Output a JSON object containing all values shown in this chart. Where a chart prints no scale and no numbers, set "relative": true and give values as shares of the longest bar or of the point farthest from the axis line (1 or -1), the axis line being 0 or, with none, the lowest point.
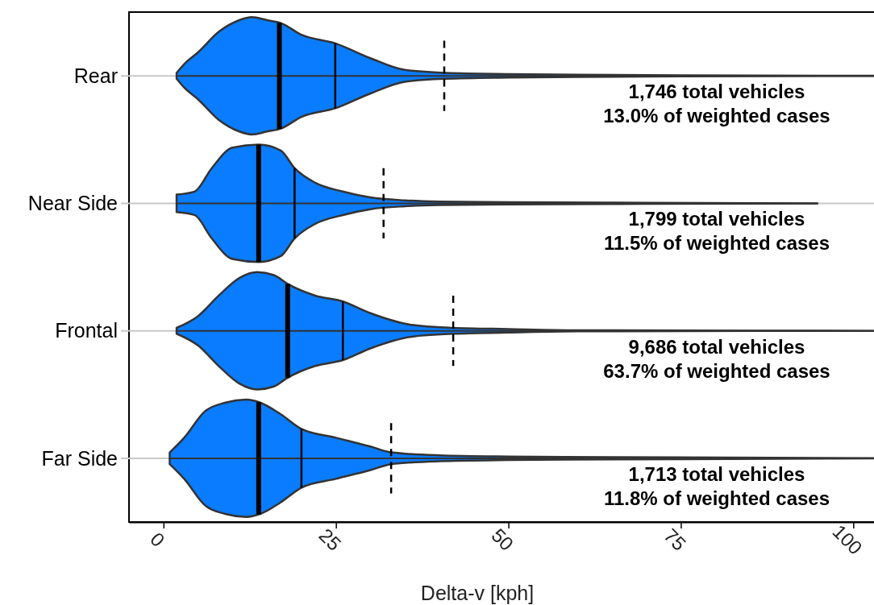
{
  "chart_data": [
    {
      "type": "area",
      "relative": true,
      "ylabel": "Rear",
      "xlim": [
        -5,
        103
      ],
      "tick_labels": false,
      "series": [
        {
          "color": "#0a7cff",
          "x": [
            1.9,
            3,
            5,
            8,
            11,
            12.8,
            15,
            17,
            20,
            25,
            30,
            35,
            41,
            50,
            60,
            75,
            103
          ],
          "values": [
            0.05,
            0.2,
            0.4,
            0.75,
            0.95,
            1,
            0.95,
            0.9,
            0.7,
            0.55,
            0.3,
            0.1,
            0.05,
            0.03,
            0.02,
            0.01,
            0
          ]
        }
      ],
      "ref_lines": [
        {
          "axis": "x",
          "value": 16.8,
          "line_style": "solid"
        },
        {
          "axis": "x",
          "value": 24.9,
          "line_style": "solid"
        },
        {
          "axis": "x",
          "value": 40.7,
          "line_style": "dashed"
        }
      ],
      "annotations": [
        "1,746 total vehicles\n13.0% of weighted cases"
      ]
    },
    {
      "type": "area",
      "relative": true,
      "ylabel": "Near Side",
      "xlim": [
        -5,
        103
      ],
      "tick_labels": false,
      "series": [
        {
          "color": "#0a7cff",
          "x": [
            1.9,
            4.5,
            7,
            10,
            13.8,
            17,
            19,
            22,
            26,
            30,
            35,
            40,
            50,
            70,
            94.8
          ],
          "values": [
            0.15,
            0.2,
            0.6,
            0.95,
            1,
            0.9,
            0.6,
            0.35,
            0.2,
            0.1,
            0.05,
            0.03,
            0.02,
            0.01,
            0
          ]
        }
      ],
      "ref_lines": [
        {
          "axis": "x",
          "value": 13.8,
          "line_style": "solid"
        },
        {
          "axis": "x",
          "value": 19,
          "line_style": "solid"
        },
        {
          "axis": "x",
          "value": 31.9,
          "line_style": "dashed"
        }
      ],
      "annotations": [
        "1,799 total vehicles\n11.5% of weighted cases"
      ]
    },
    {
      "type": "area",
      "relative": true,
      "ylabel": "Frontal",
      "xlim": [
        -5,
        103
      ],
      "tick_labels": false,
      "series": [
        {
          "color": "#0a7cff",
          "x": [
            1.9,
            5,
            8,
            11,
            13.6,
            16,
            18,
            22,
            26,
            30,
            36,
            42,
            50,
            60,
            103
          ],
          "values": [
            0.05,
            0.25,
            0.6,
            0.9,
            1,
            0.95,
            0.8,
            0.6,
            0.5,
            0.3,
            0.1,
            0.05,
            0.03,
            0.01,
            0
          ]
        }
      ],
      "ref_lines": [
        {
          "axis": "x",
          "value": 18,
          "line_style": "solid"
        },
        {
          "axis": "x",
          "value": 26,
          "line_style": "solid"
        },
        {
          "axis": "x",
          "value": 42,
          "line_style": "dashed"
        }
      ],
      "annotations": [
        "9,686 total vehicles\n63.7% of weighted cases"
      ]
    },
    {
      "type": "area",
      "relative": true,
      "ylabel": "Far Side",
      "xlabel": "Delta-v [kph]",
      "xlim": [
        -5,
        103
      ],
      "xticks": [
        0,
        25,
        50,
        75,
        100
      ],
      "tick_labels": "x",
      "series": [
        {
          "color": "#0a7cff",
          "x": [
            0.9,
            3,
            6,
            9,
            12,
            14,
            17,
            20,
            25,
            30,
            33,
            40,
            50,
            65,
            103
          ],
          "values": [
            0.1,
            0.35,
            0.8,
            0.95,
            1,
            0.95,
            0.75,
            0.5,
            0.35,
            0.2,
            0.1,
            0.05,
            0.03,
            0.02,
            0
          ]
        }
      ],
      "ref_lines": [
        {
          "axis": "x",
          "value": 13.8,
          "line_style": "solid"
        },
        {
          "axis": "x",
          "value": 20,
          "line_style": "solid"
        },
        {
          "axis": "x",
          "value": 33,
          "line_style": "dashed"
        }
      ],
      "annotations": [
        "1,713 total vehicles\n11.8% of weighted cases"
      ]
    }
  ]
}
